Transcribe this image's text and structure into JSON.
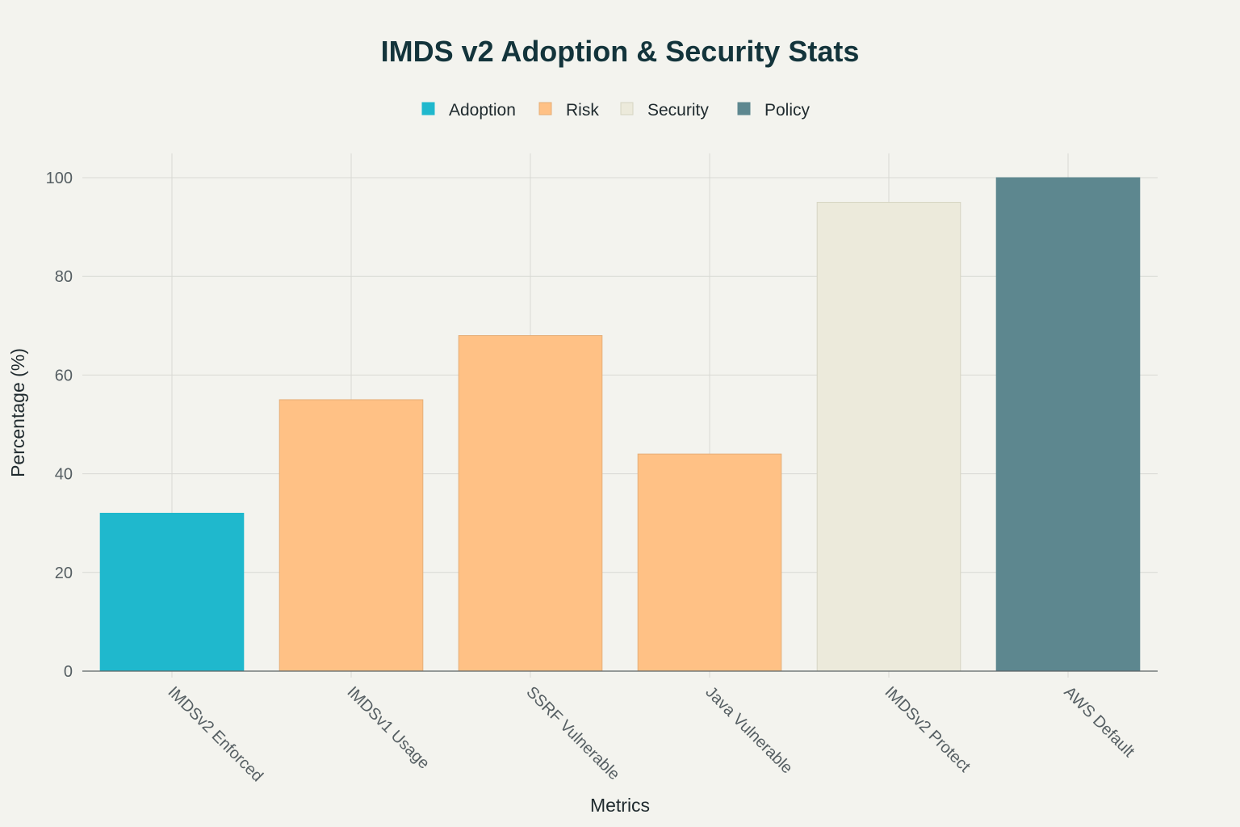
{
  "chart_data": {
    "type": "bar",
    "title": "IMDS v2 Adoption & Security Stats",
    "xlabel": "Metrics",
    "ylabel": "Percentage (%)",
    "ylim": [
      0,
      100
    ],
    "yticks": [
      0,
      20,
      40,
      60,
      80,
      100
    ],
    "grid": true,
    "legend_position": "top-center",
    "categories": [
      "IMDSv2 Enforced",
      "IMDSv1 Usage",
      "SSRF Vulnerable",
      "Java Vulnerable",
      "IMDSv2 Protect",
      "AWS Default"
    ],
    "values": [
      32,
      55,
      68,
      44,
      95,
      100
    ],
    "groups": [
      "Adoption",
      "Risk",
      "Risk",
      "Risk",
      "Security",
      "Policy"
    ],
    "legend": [
      {
        "name": "Adoption",
        "color": "#1fb8cd"
      },
      {
        "name": "Risk",
        "color": "#ffc185"
      },
      {
        "name": "Security",
        "color": "#eceadb"
      },
      {
        "name": "Policy",
        "color": "#5d878f"
      }
    ]
  }
}
